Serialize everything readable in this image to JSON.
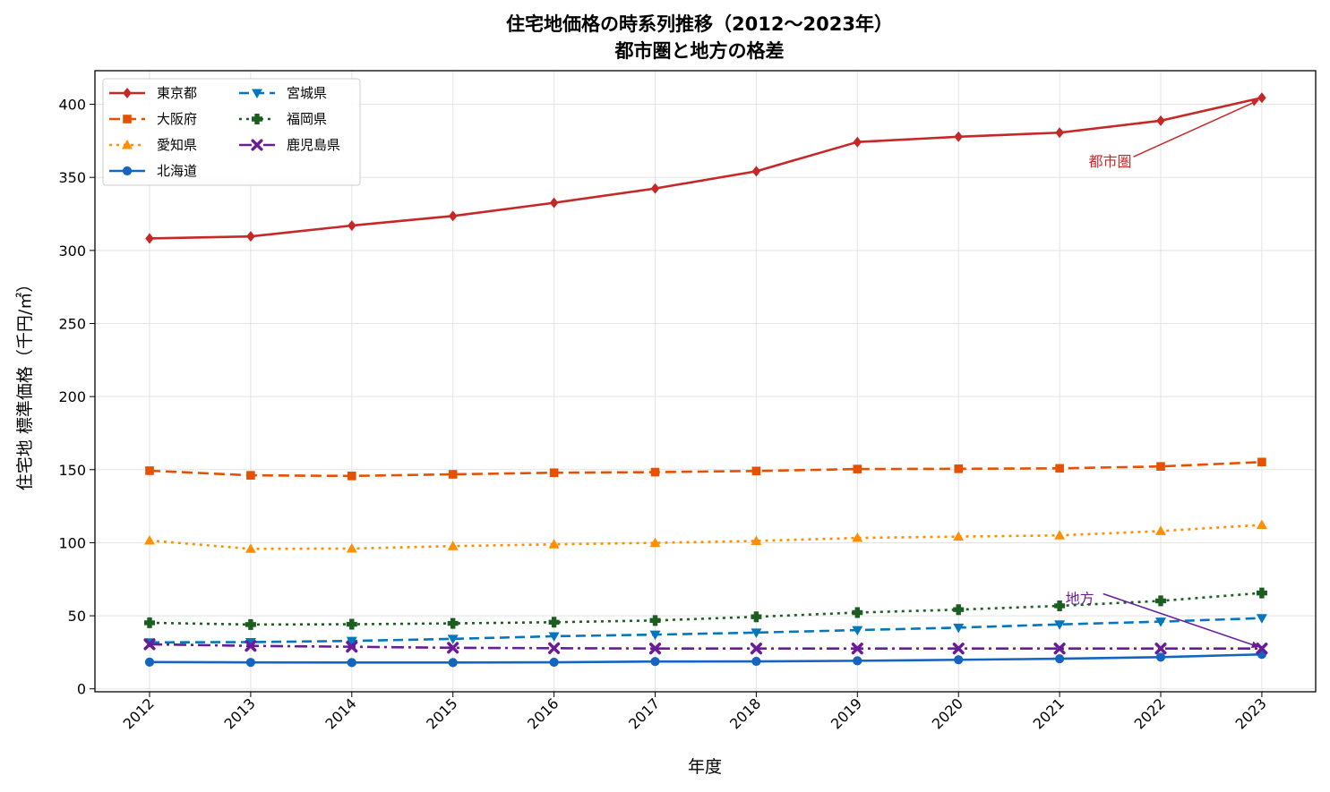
{
  "chart_data": {
    "type": "line",
    "title_line1": "住宅地価格の時系列推移（2012〜2023年）",
    "title_line2": "都市圏と地方の格差",
    "xlabel": "年度",
    "ylabel": "住宅地 標準価格（千円/㎡）",
    "x": [
      "2012",
      "2013",
      "2014",
      "2015",
      "2016",
      "2017",
      "2018",
      "2019",
      "2020",
      "2021",
      "2022",
      "2023"
    ],
    "ylim": [
      -2,
      423
    ],
    "yticks": [
      0,
      50,
      100,
      150,
      200,
      250,
      300,
      350,
      400
    ],
    "grid": true,
    "legend_position": "top-left",
    "series": [
      {
        "name": "東京都",
        "color": "#c62828",
        "dash": "",
        "marker": "diamond",
        "values": [
          308.2,
          309.6,
          317.0,
          323.6,
          332.6,
          342.4,
          354.2,
          374.2,
          377.8,
          380.6,
          388.8,
          404.5
        ]
      },
      {
        "name": "大阪府",
        "color": "#e65100",
        "dash": "12 6",
        "marker": "square",
        "values": [
          149.3,
          146.1,
          145.7,
          146.8,
          147.9,
          148.3,
          149.1,
          150.4,
          150.6,
          150.9,
          152.2,
          155.2
        ]
      },
      {
        "name": "愛知県",
        "color": "#ff8f00",
        "dash": "3 5",
        "marker": "triangle-up",
        "values": [
          101.5,
          95.8,
          96.0,
          97.7,
          98.9,
          99.9,
          101.2,
          103.3,
          104.2,
          105.0,
          108.0,
          112.2
        ]
      },
      {
        "name": "北海道",
        "color": "#1565c0",
        "dash": "",
        "marker": "circle",
        "values": [
          18.3,
          18.1,
          18.0,
          18.0,
          18.2,
          18.7,
          18.8,
          19.2,
          19.9,
          20.6,
          21.7,
          23.6
        ]
      },
      {
        "name": "宮城県",
        "color": "#0277bd",
        "dash": "11 6",
        "marker": "triangle-down",
        "values": [
          31.8,
          32.0,
          32.8,
          34.2,
          36.0,
          37.1,
          38.5,
          40.2,
          41.9,
          44.1,
          46.0,
          48.4
        ]
      },
      {
        "name": "福岡県",
        "color": "#1b5e20",
        "dash": "3 5",
        "marker": "plus",
        "values": [
          45.2,
          44.0,
          44.2,
          44.8,
          45.6,
          46.8,
          49.3,
          52.2,
          54.2,
          56.8,
          60.2,
          65.6
        ]
      },
      {
        "name": "鹿児島県",
        "color": "#6a1b9a",
        "dash": "14 5 3 5",
        "marker": "x",
        "values": [
          30.5,
          29.4,
          28.8,
          28.1,
          27.8,
          27.6,
          27.6,
          27.6,
          27.6,
          27.6,
          27.6,
          27.6
        ]
      }
    ],
    "annotations": [
      {
        "text": "都市圏",
        "color": "#c62828",
        "text_x": "2021.5",
        "text_y": 361,
        "target_x": "2023",
        "target_y": 404.5
      },
      {
        "text": "地方",
        "color": "#6a1b9a",
        "text_x": "2021.2",
        "text_y": 62,
        "target_x": "2023",
        "target_y": 27.6
      }
    ]
  }
}
